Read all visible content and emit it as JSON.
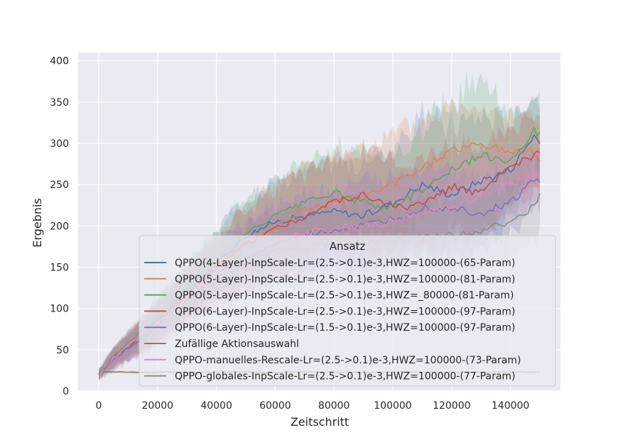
{
  "chart_data": {
    "type": "line",
    "xlabel": "Zeitschritt",
    "ylabel": "Ergebnis",
    "xlim": [
      -7000,
      157000
    ],
    "ylim": [
      0,
      410
    ],
    "xticks": [
      0,
      20000,
      40000,
      60000,
      80000,
      100000,
      120000,
      140000
    ],
    "yticks": [
      0,
      50,
      100,
      150,
      200,
      250,
      300,
      350,
      400
    ],
    "grid": true,
    "background": "#eaeaf2",
    "legend": {
      "title": "Ansatz",
      "placement": "lower-right"
    },
    "series": [
      {
        "name": "QPPO(4-Layer)-InpScale-Lr=(2.5->0.1)e-3,HWZ=100000-(65-Param)",
        "color": "#4c72b0",
        "x": [
          0,
          5000,
          10000,
          15000,
          20000,
          30000,
          40000,
          50000,
          60000,
          70000,
          80000,
          90000,
          100000,
          110000,
          120000,
          130000,
          140000,
          148000,
          150000
        ],
        "y": [
          20,
          40,
          55,
          68,
          85,
          120,
          155,
          188,
          205,
          212,
          218,
          212,
          228,
          250,
          238,
          255,
          268,
          310,
          300
        ],
        "band": [
          6,
          12,
          16,
          20,
          24,
          30,
          40,
          45,
          50,
          55,
          58,
          60,
          65,
          80,
          85,
          80,
          60,
          50,
          50
        ]
      },
      {
        "name": "QPPO(5-Layer)-InpScale-Lr=(2.5->0.1)e-3,HWZ=100000-(81-Param)",
        "color": "#dd8452",
        "x": [
          0,
          5000,
          10000,
          15000,
          20000,
          30000,
          40000,
          50000,
          60000,
          70000,
          80000,
          90000,
          100000,
          110000,
          120000,
          130000,
          140000,
          148000,
          150000
        ],
        "y": [
          20,
          40,
          55,
          68,
          85,
          118,
          150,
          180,
          200,
          220,
          230,
          235,
          250,
          270,
          292,
          298,
          290,
          290,
          282
        ],
        "band": [
          6,
          12,
          16,
          20,
          24,
          30,
          38,
          42,
          48,
          52,
          55,
          55,
          60,
          60,
          55,
          50,
          45,
          45,
          45
        ]
      },
      {
        "name": "QPPO(5-Layer)-InpScale-Lr=(2.5->0.1)e-3,HWZ=_80000-(81-Param)",
        "color": "#55a868",
        "x": [
          0,
          5000,
          10000,
          15000,
          20000,
          30000,
          40000,
          50000,
          60000,
          70000,
          80000,
          90000,
          100000,
          110000,
          120000,
          130000,
          140000,
          148000,
          150000
        ],
        "y": [
          20,
          40,
          55,
          68,
          88,
          125,
          160,
          190,
          212,
          228,
          240,
          228,
          222,
          245,
          268,
          285,
          280,
          315,
          310
        ],
        "band": [
          6,
          12,
          16,
          20,
          24,
          30,
          38,
          42,
          48,
          52,
          55,
          55,
          60,
          75,
          85,
          90,
          60,
          40,
          40
        ]
      },
      {
        "name": "QPPO(6-Layer)-InpScale-Lr=(2.5->0.1)e-3,HWZ=100000-(97-Param)",
        "color": "#c44e52",
        "x": [
          0,
          5000,
          10000,
          15000,
          20000,
          30000,
          40000,
          50000,
          60000,
          70000,
          80000,
          90000,
          100000,
          110000,
          120000,
          130000,
          140000,
          148000,
          150000
        ],
        "y": [
          20,
          40,
          55,
          68,
          85,
          118,
          150,
          178,
          198,
          210,
          230,
          238,
          222,
          225,
          248,
          240,
          270,
          285,
          288
        ],
        "band": [
          6,
          12,
          16,
          20,
          24,
          30,
          38,
          42,
          48,
          52,
          55,
          55,
          55,
          55,
          55,
          55,
          50,
          45,
          45
        ]
      },
      {
        "name": "QPPO(6-Layer)-InpScale-Lr=(1.5->0.1)e-3,HWZ=100000-(97-Param)",
        "color": "#8172b3",
        "x": [
          0,
          5000,
          10000,
          15000,
          20000,
          30000,
          40000,
          50000,
          60000,
          70000,
          80000,
          90000,
          100000,
          110000,
          120000,
          130000,
          140000,
          148000,
          150000
        ],
        "y": [
          20,
          38,
          52,
          64,
          80,
          110,
          140,
          162,
          178,
          188,
          195,
          200,
          208,
          222,
          222,
          215,
          228,
          255,
          255
        ],
        "band": [
          6,
          12,
          16,
          20,
          24,
          30,
          38,
          42,
          48,
          50,
          50,
          50,
          50,
          50,
          50,
          45,
          40,
          35,
          35
        ]
      },
      {
        "name": "Zufällige Aktionsauswahl",
        "color": "#937860",
        "x": [
          0,
          1000,
          3000,
          6000,
          10000,
          15000,
          20000,
          30000,
          40000,
          50000,
          60000,
          70000,
          80000,
          90000,
          100000,
          110000,
          120000,
          130000,
          140000,
          150000
        ],
        "y": [
          20,
          23,
          23.5,
          23,
          23,
          22.5,
          23,
          22.5,
          23,
          23,
          22.5,
          23,
          23,
          22.5,
          23,
          23,
          22.5,
          23,
          23,
          23
        ],
        "band": [
          1,
          1,
          1,
          1,
          1,
          1,
          1,
          1,
          1,
          1,
          1,
          1,
          1,
          1,
          1,
          1,
          1,
          1,
          1,
          1
        ]
      },
      {
        "name": "QPPO-manuelles-Rescale-Lr=(2.5->0.1)e-3,HWZ=100000-(73-Param)",
        "color": "#da8bc3",
        "x": [
          0,
          5000,
          10000,
          15000,
          20000,
          30000,
          40000,
          50000,
          60000,
          70000,
          80000,
          90000,
          100000,
          110000,
          120000,
          130000,
          140000,
          148000,
          150000
        ],
        "y": [
          20,
          40,
          55,
          68,
          82,
          112,
          142,
          165,
          182,
          192,
          198,
          200,
          206,
          215,
          222,
          238,
          252,
          262,
          265
        ],
        "band": [
          6,
          12,
          16,
          20,
          24,
          30,
          38,
          42,
          48,
          50,
          50,
          50,
          50,
          50,
          50,
          45,
          40,
          35,
          35
        ]
      },
      {
        "name": "QPPO-globales-InpScale-Lr=(2.5->0.1)e-3,HWZ=100000-(77-Param)",
        "color": "#8c8c8c",
        "x": [
          0,
          5000,
          10000,
          15000,
          20000,
          30000,
          40000,
          50000,
          60000,
          70000,
          80000,
          90000,
          100000,
          110000,
          120000,
          130000,
          140000,
          148000,
          150000
        ],
        "y": [
          20,
          42,
          60,
          75,
          90,
          120,
          150,
          162,
          170,
          175,
          178,
          180,
          182,
          185,
          188,
          192,
          205,
          225,
          240
        ],
        "band": [
          6,
          12,
          16,
          20,
          24,
          30,
          38,
          42,
          45,
          45,
          45,
          45,
          45,
          45,
          45,
          45,
          45,
          45,
          45
        ]
      }
    ]
  }
}
